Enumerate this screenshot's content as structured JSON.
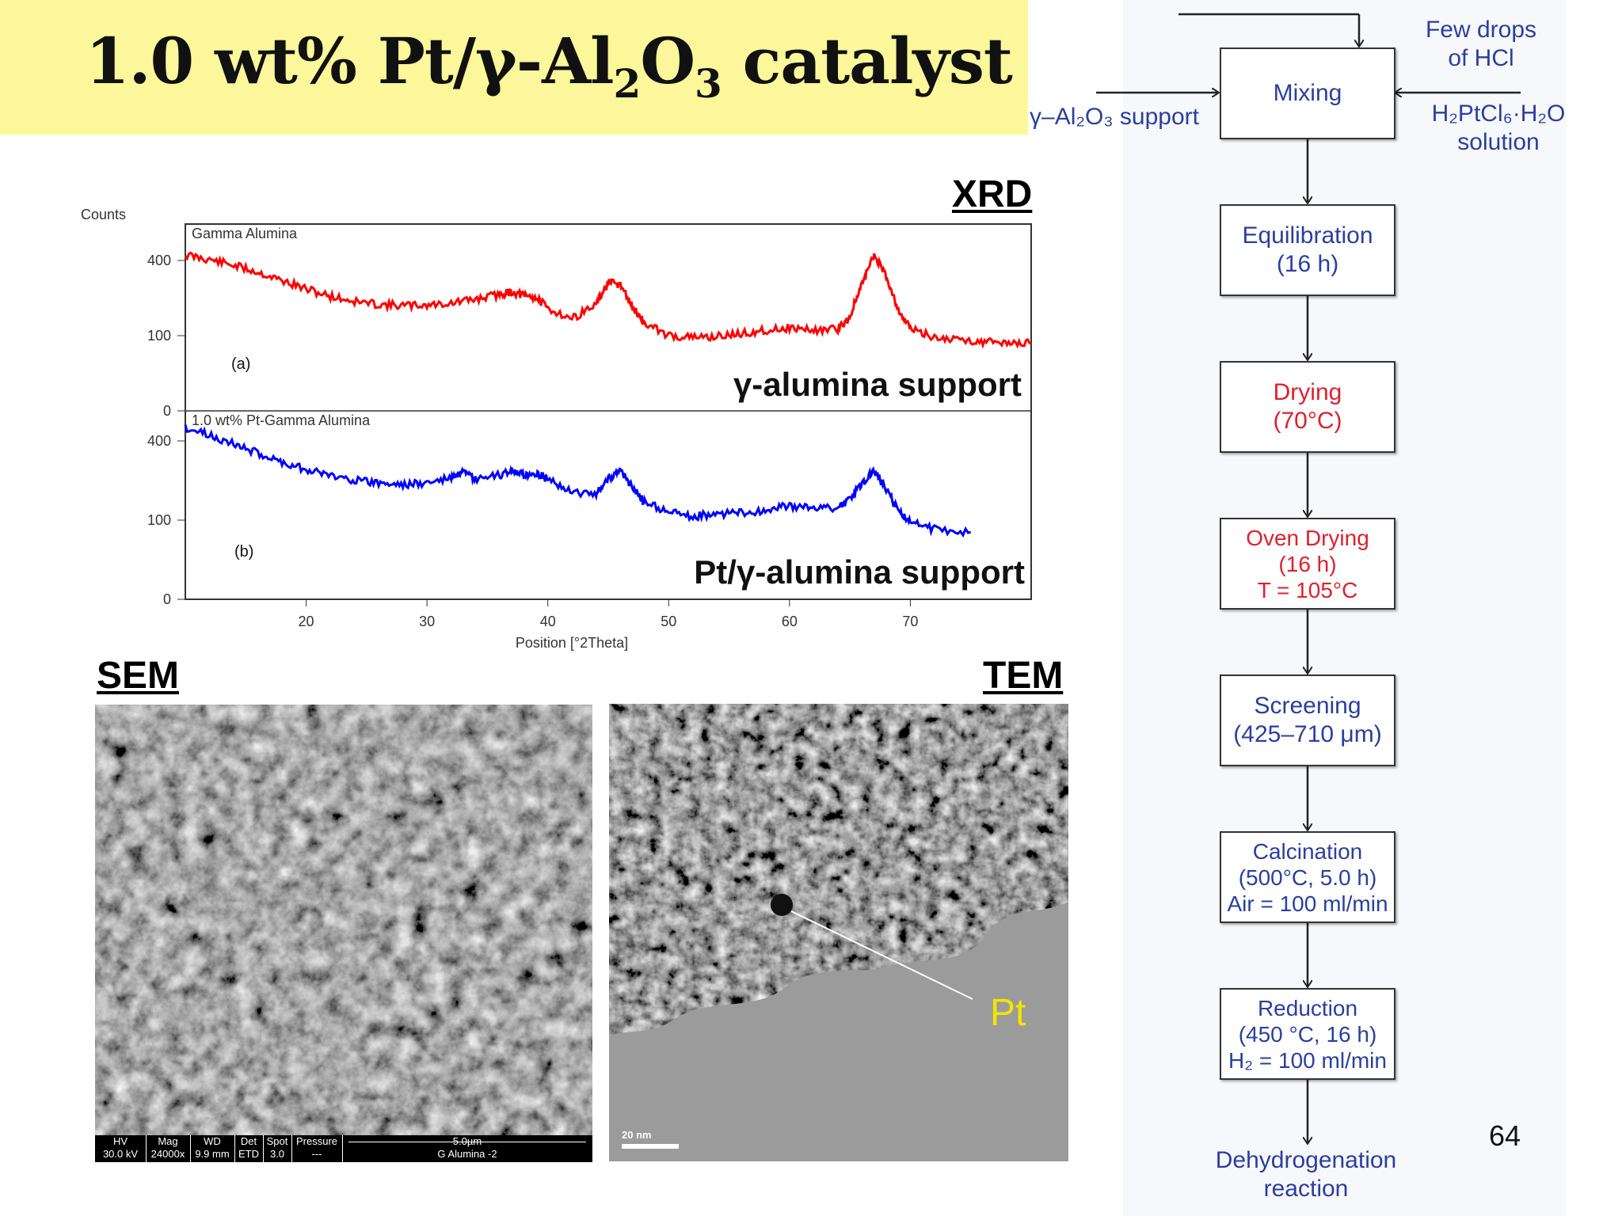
{
  "title": {
    "pre": "1.0 wt% Pt/γ-Al",
    "sub1": "2",
    "mid": "O",
    "sub2": "3",
    "post": " catalyst"
  },
  "xrd": {
    "label": "XRD",
    "counts_label": "Counts",
    "x_axis_label": "Position [°2Theta]",
    "x_ticks": [
      "20",
      "30",
      "40",
      "50",
      "60",
      "70"
    ],
    "panel_a": {
      "sample_name": "Gamma Alumina",
      "tag": "(a)",
      "caption": "γ-alumina support",
      "y_ticks": [
        "400",
        "100",
        "0"
      ]
    },
    "panel_b": {
      "sample_name": "1.0 wt% Pt-Gamma Alumina",
      "tag": "(b)",
      "caption": "Pt/γ-alumina support",
      "y_ticks": [
        "400",
        "100",
        "0"
      ]
    }
  },
  "chart_data": [
    {
      "type": "line",
      "title": "Gamma Alumina",
      "xlabel": "Position [°2Theta]",
      "ylabel": "Counts",
      "xlim": [
        10,
        80
      ],
      "series": [
        {
          "name": "Gamma Alumina",
          "color": "#ff0000",
          "x": [
            10,
            12,
            14,
            16,
            18,
            20,
            22,
            24,
            26,
            28,
            30,
            32,
            34,
            36,
            37,
            38,
            39,
            40,
            42,
            44,
            45,
            46,
            47,
            48,
            50,
            52,
            54,
            56,
            58,
            60,
            62,
            64,
            65,
            66,
            67,
            68,
            69,
            70,
            72,
            74,
            76,
            78,
            80
          ],
          "y": [
            430,
            405,
            375,
            340,
            300,
            262,
            232,
            212,
            200,
            196,
            198,
            205,
            220,
            240,
            250,
            235,
            228,
            185,
            150,
            200,
            290,
            280,
            190,
            135,
            100,
            95,
            98,
            105,
            115,
            122,
            115,
            118,
            155,
            280,
            430,
            320,
            180,
            120,
            95,
            90,
            85,
            82,
            80
          ]
        }
      ]
    },
    {
      "type": "line",
      "title": "1.0 wt% Pt-Gamma Alumina",
      "xlabel": "Position [°2Theta]",
      "ylabel": "Counts",
      "xlim": [
        10,
        80
      ],
      "series": [
        {
          "name": "1.0 wt% Pt-Gamma Alumina",
          "color": "#0000ff",
          "x": [
            10,
            12,
            14,
            16,
            18,
            20,
            22,
            24,
            26,
            28,
            30,
            32,
            33,
            34,
            36,
            37,
            38,
            39,
            40,
            42,
            44,
            45,
            46,
            47,
            48,
            50,
            52,
            54,
            56,
            58,
            60,
            62,
            64,
            65,
            66,
            67,
            68,
            69,
            70,
            72,
            75
          ],
          "y": [
            470,
            430,
            385,
            340,
            300,
            270,
            245,
            228,
            215,
            210,
            215,
            235,
            255,
            228,
            245,
            265,
            245,
            255,
            230,
            185,
            175,
            235,
            260,
            200,
            150,
            120,
            110,
            115,
            120,
            125,
            140,
            130,
            135,
            160,
            210,
            265,
            190,
            125,
            95,
            78,
            72
          ]
        }
      ]
    }
  ],
  "sem": {
    "label": "SEM",
    "info_bar": [
      {
        "head": "HV",
        "val": "30.0 kV"
      },
      {
        "head": "Mag",
        "val": "24000x"
      },
      {
        "head": "WD",
        "val": "9.9 mm"
      },
      {
        "head": "Det",
        "val": "ETD"
      },
      {
        "head": "Spot",
        "val": "3.0"
      },
      {
        "head": "Pressure",
        "val": "---"
      }
    ],
    "scale_text": "5.0µm",
    "sample_text": "G Alumina -2"
  },
  "tem": {
    "label": "TEM",
    "scale_text": "20 nm",
    "pt_label": "Pt"
  },
  "flowchart": {
    "inputs": {
      "hcl": [
        "Few drops",
        "of HCl"
      ],
      "support": "γ–Al₂O₃ support",
      "solution": [
        "H₂PtCl₆·H₂O",
        "solution"
      ]
    },
    "steps": [
      {
        "lines": [
          "Mixing"
        ],
        "color": "blue"
      },
      {
        "lines": [
          "Equilibration",
          "(16 h)"
        ],
        "color": "blue"
      },
      {
        "lines": [
          "Drying",
          "(70°C)"
        ],
        "color": "red"
      },
      {
        "lines": [
          "Oven Drying",
          "(16 h)",
          "T = 105°C"
        ],
        "color": "red"
      },
      {
        "lines": [
          "Screening",
          "(425–710 μm)"
        ],
        "color": "blue"
      },
      {
        "lines": [
          "Calcination",
          "(500°C, 5.0 h)",
          "Air = 100 ml/min"
        ],
        "color": "blue"
      },
      {
        "lines": [
          "Reduction",
          "(450 °C, 16 h)",
          "H₂ = 100 ml/min"
        ],
        "color": "blue"
      }
    ],
    "final": [
      "Dehydrogenation",
      "reaction"
    ],
    "colors": {
      "blue": "#2a3f9e",
      "red": "#e0202e"
    }
  },
  "page_number": "64"
}
